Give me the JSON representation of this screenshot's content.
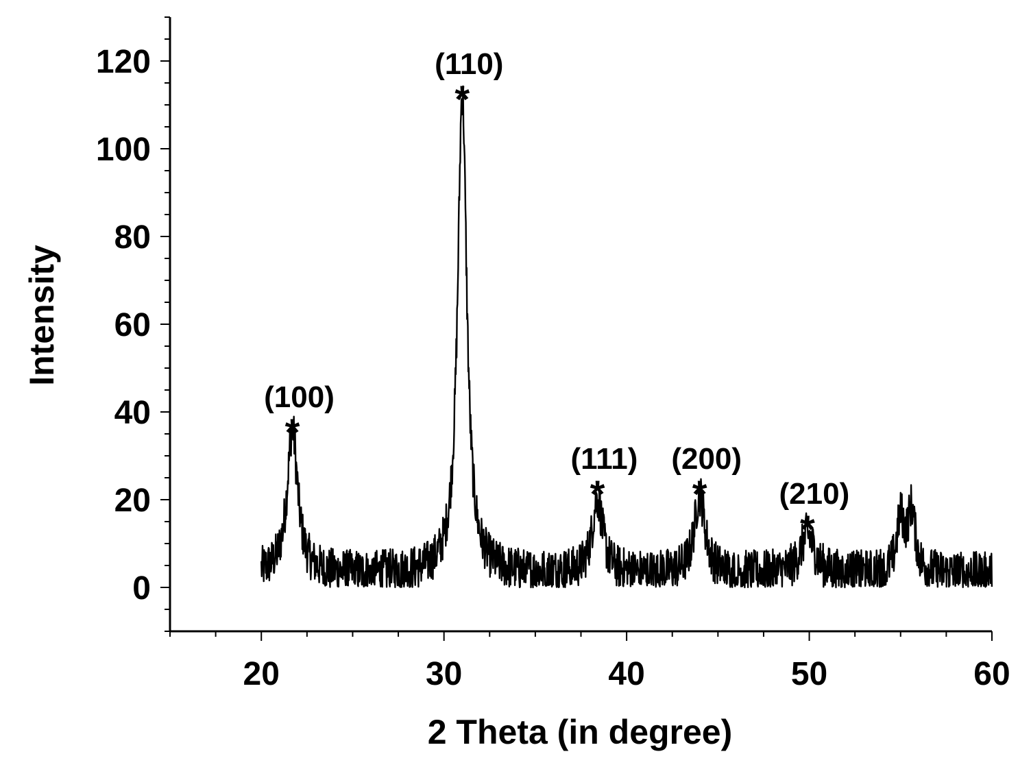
{
  "chart_data": {
    "type": "line",
    "title": "",
    "xlabel": "2 Theta (in degree)",
    "ylabel": "Intensity",
    "xlim": [
      15,
      60
    ],
    "ylim": [
      -10,
      130
    ],
    "x_ticks": [
      20,
      30,
      40,
      50,
      60
    ],
    "y_ticks": [
      0,
      20,
      40,
      60,
      80,
      100,
      120
    ],
    "grid": false,
    "legend": "none",
    "line_color": "#000000",
    "series": [
      {
        "x_range": [
          20,
          60
        ],
        "peaks": [
          {
            "center": 21.7,
            "height": 33,
            "width": 0.35
          },
          {
            "center": 31.0,
            "height": 110,
            "width": 0.3
          },
          {
            "center": 38.4,
            "height": 17,
            "width": 0.35
          },
          {
            "center": 44.0,
            "height": 18,
            "width": 0.35
          },
          {
            "center": 49.9,
            "height": 9,
            "width": 0.45
          },
          {
            "center": 55.0,
            "height": 12,
            "width": 0.25
          },
          {
            "center": 55.6,
            "height": 14,
            "width": 0.25
          }
        ],
        "baseline": 3,
        "noise_amplitude": 5
      }
    ],
    "annotations": [
      {
        "label": "(100)",
        "x": 21.7,
        "y": 37
      },
      {
        "label": "(110)",
        "x": 31.0,
        "y": 113
      },
      {
        "label": "(111)",
        "x": 38.4,
        "y": 23
      },
      {
        "label": "(200)",
        "x": 44.0,
        "y": 23
      },
      {
        "label": "(210)",
        "x": 49.9,
        "y": 15
      }
    ],
    "marker_symbol": "*"
  }
}
